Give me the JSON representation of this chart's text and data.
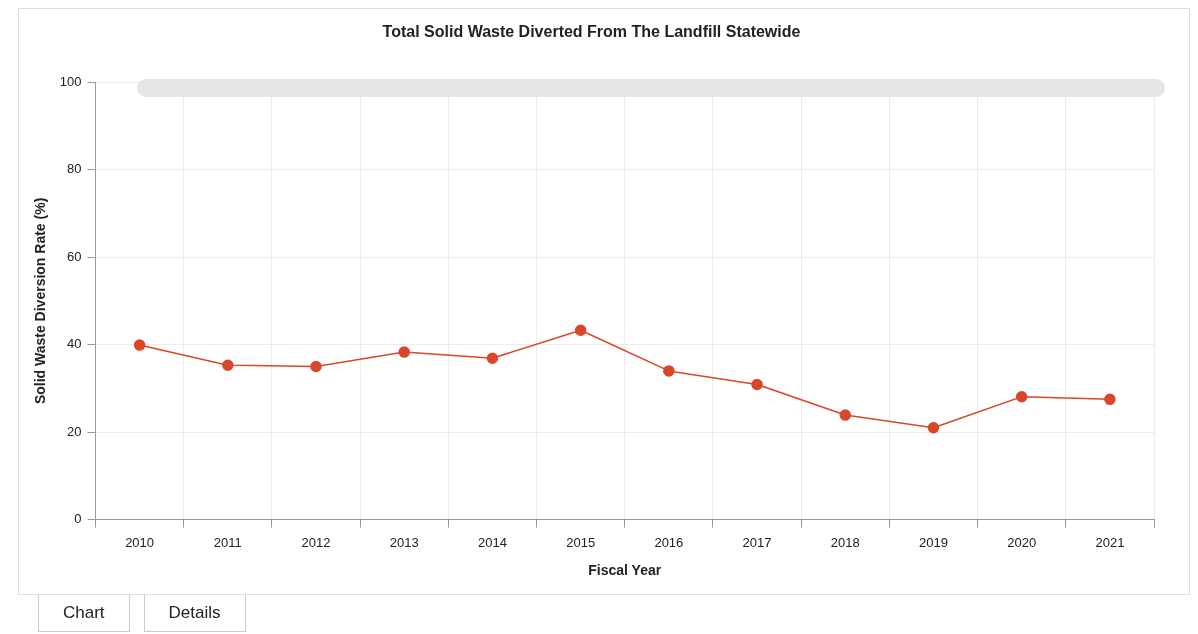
{
  "chart_data": {
    "type": "line",
    "title": "Total Solid Waste Diverted From The Landfill Statewide",
    "xlabel": "Fiscal Year",
    "ylabel": "Solid Waste Diversion Rate (%)",
    "categories": [
      "2010",
      "2011",
      "2012",
      "2013",
      "2014",
      "2015",
      "2016",
      "2017",
      "2018",
      "2019",
      "2020",
      "2021"
    ],
    "series": [
      {
        "color": "#d9472b",
        "values": [
          39.9,
          35.3,
          35.0,
          38.3,
          36.9,
          43.3,
          34.0,
          30.9,
          23.9,
          21.0,
          28.1,
          27.5
        ]
      }
    ],
    "ylim": [
      0,
      100
    ],
    "yticks": [
      0,
      20,
      40,
      60,
      80,
      100
    ],
    "grid": true,
    "legend": false,
    "marker": "circle",
    "line_style": "solid",
    "annotations": [
      "Chart",
      "Details"
    ]
  }
}
